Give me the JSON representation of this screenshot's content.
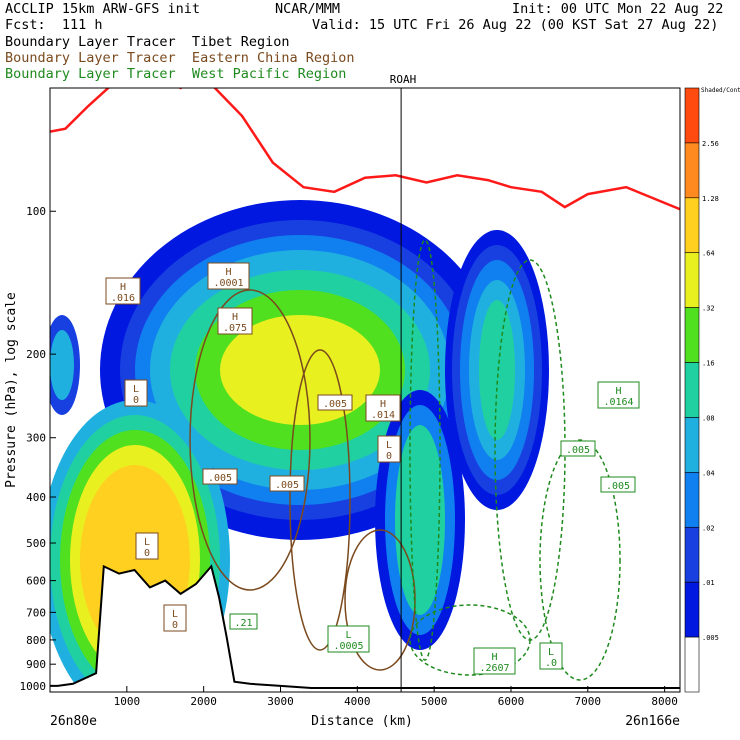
{
  "header": {
    "line1_left": "ACCLIP 15km ARW-GFS init",
    "line1_mid": "NCAR/MMM",
    "line1_right": "Init: 00 UTC Mon 22 Aug 22",
    "line2_left": "Fcst:  111 h",
    "line2_right": "Valid: 15 UTC Fri 26 Aug 22 (00 KST Sat 27 Aug 22)",
    "tracer_black": "Boundary Layer Tracer  Tibet Region",
    "tracer_brown": "Boundary Layer Tracer  Eastern China Region",
    "tracer_green": "Boundary Layer Tracer  West Pacific Region"
  },
  "colors": {
    "tibet": "#000000",
    "eastern_china": "#7a4a1e",
    "west_pacific": "#1e8a1e",
    "tropopause": "#ff1a1a",
    "terrain": "#000000"
  },
  "chart_data": {
    "type": "heatmap",
    "xlabel": "Distance (km)",
    "ylabel": "Pressure (hPa), log scale",
    "x_ticks": [
      "1000",
      "2000",
      "3000",
      "4000",
      "5000",
      "6000",
      "7000",
      "8000"
    ],
    "y_ticks": [
      "100",
      "200",
      "300",
      "400",
      "500",
      "600",
      "700",
      "800",
      "900",
      "1000"
    ],
    "x_start_label": "26n80e",
    "x_end_label": "26n166e",
    "marker_label": "ROAH",
    "marker_x_km": 4570,
    "xlim": [
      0,
      8200
    ],
    "ylim": [
      1030,
      55
    ],
    "y_scale": "log",
    "colorbar": {
      "top_label": "Shaded/Contour",
      "labels": [
        "2.56",
        "1.28",
        ".64",
        ".32",
        ".16",
        ".08",
        ".04",
        ".02",
        ".01",
        ".005"
      ],
      "colors": [
        "#ff4a10",
        "#ff8a20",
        "#ffd020",
        "#e8f020",
        "#50e020",
        "#20d0a0",
        "#20b0e0",
        "#1080f0",
        "#1840e0",
        "#0018e0",
        "#ffffff"
      ]
    },
    "tropopause": {
      "x": [
        0,
        200,
        500,
        1100,
        1700,
        2000,
        2500,
        2900,
        3300,
        3700,
        4100,
        4500,
        4900,
        5300,
        5700,
        6000,
        6400,
        6700,
        7000,
        7500,
        8200
      ],
      "p": [
        68,
        67,
        60,
        49,
        55,
        52,
        63,
        79,
        89,
        91,
        85,
        84,
        87,
        84,
        86,
        89,
        91,
        98,
        92,
        89,
        99
      ]
    },
    "terrain": {
      "x": [
        0,
        100,
        300,
        600,
        700,
        900,
        1100,
        1300,
        1500,
        1700,
        1900,
        2100,
        2200,
        2300,
        2400,
        2600,
        3000,
        3400,
        4000,
        5000,
        6000,
        7000,
        8200
      ],
      "p": [
        1000,
        1000,
        990,
        940,
        560,
        580,
        570,
        620,
        600,
        640,
        610,
        560,
        650,
        790,
        980,
        990,
        1000,
        1010,
        1010,
        1010,
        1010,
        1010,
        1010
      ]
    },
    "annotations": [
      {
        "label": "H",
        "value": ".016"
      },
      {
        "label": "H",
        "value": ".0001"
      },
      {
        "label": "H",
        "value": ".075"
      },
      {
        "label": "L",
        "value": "0"
      },
      {
        "label": "L",
        "value": "0"
      },
      {
        "label": "H",
        "value": ".014"
      },
      {
        "label": "L",
        "value": "0"
      },
      {
        "label": "H",
        "value": ".0164"
      },
      {
        "label": "L",
        "value": ".0005"
      },
      {
        "label": "H",
        "value": ".2607"
      },
      {
        "label": "L",
        "value": ".0"
      },
      {
        "label": "L",
        "value": "0"
      },
      {
        "label": "",
        "value": ".005"
      },
      {
        "label": "",
        "value": ".005"
      },
      {
        "label": "",
        "value": ".005"
      },
      {
        "label": "",
        "value": ".005"
      },
      {
        "label": "",
        "value": ".005"
      },
      {
        "label": "",
        "value": ".21"
      }
    ]
  }
}
